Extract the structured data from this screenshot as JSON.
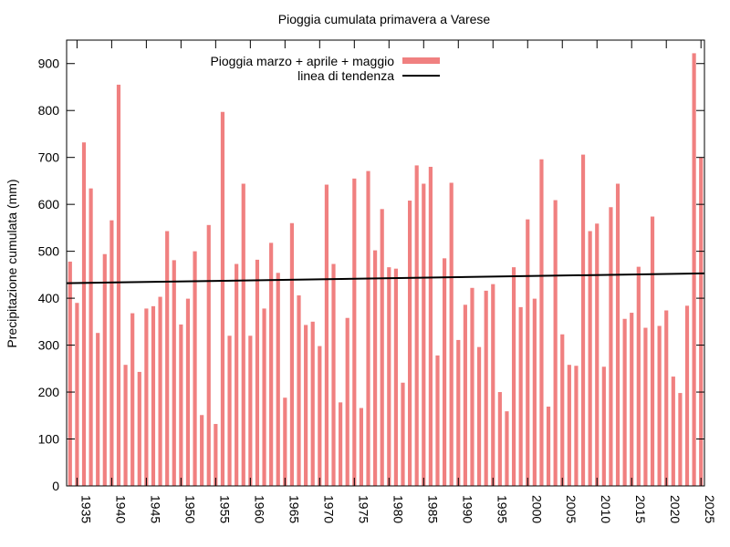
{
  "chart_data": {
    "type": "bar",
    "title": "Pioggia cumulata primavera a Varese",
    "xlabel": "",
    "ylabel": "Precipitazione cumulata (mm)",
    "xlim": [
      1934,
      2025
    ],
    "ylim": [
      0,
      950
    ],
    "grid": false,
    "legend_position": "top",
    "yticks": [
      0,
      100,
      200,
      300,
      400,
      500,
      600,
      700,
      800,
      900
    ],
    "xticks": [
      1935,
      1940,
      1945,
      1950,
      1955,
      1960,
      1965,
      1970,
      1975,
      1980,
      1985,
      1990,
      1995,
      2000,
      2005,
      2010,
      2015,
      2020,
      2025
    ],
    "x": [
      1934,
      1935,
      1936,
      1937,
      1938,
      1939,
      1940,
      1941,
      1942,
      1943,
      1944,
      1945,
      1946,
      1947,
      1948,
      1949,
      1950,
      1951,
      1952,
      1953,
      1954,
      1955,
      1956,
      1957,
      1958,
      1959,
      1960,
      1961,
      1962,
      1963,
      1964,
      1965,
      1966,
      1967,
      1968,
      1969,
      1970,
      1971,
      1972,
      1973,
      1974,
      1975,
      1976,
      1977,
      1978,
      1979,
      1980,
      1981,
      1982,
      1983,
      1984,
      1985,
      1986,
      1987,
      1988,
      1989,
      1990,
      1991,
      1992,
      1993,
      1994,
      1995,
      1996,
      1997,
      1998,
      1999,
      2000,
      2001,
      2002,
      2003,
      2004,
      2005,
      2006,
      2007,
      2008,
      2009,
      2010,
      2011,
      2012,
      2013,
      2014,
      2015,
      2016,
      2017,
      2018,
      2019,
      2020,
      2021,
      2022,
      2023,
      2024,
      2025
    ],
    "series": [
      {
        "name": "Pioggia marzo + aprile + maggio",
        "color": "#f08080",
        "values": [
          478,
          390,
          732,
          634,
          326,
          494,
          566,
          855,
          258,
          368,
          243,
          378,
          383,
          403,
          543,
          481,
          344,
          399,
          500,
          151,
          556,
          132,
          797,
          320,
          473,
          644,
          320,
          482,
          378,
          518,
          454,
          188,
          560,
          406,
          343,
          350,
          298,
          642,
          473,
          178,
          358,
          655,
          166,
          671,
          502,
          590,
          466,
          463,
          220,
          608,
          683,
          644,
          680,
          278,
          485,
          646,
          311,
          386,
          422,
          296,
          416,
          430,
          200,
          159,
          466,
          381,
          568,
          399,
          696,
          169,
          609,
          323,
          258,
          256,
          706,
          543,
          559,
          254,
          594,
          644,
          356,
          369,
          467,
          337,
          574,
          341,
          374,
          233,
          198,
          384,
          922,
          700
        ]
      }
    ],
    "trend": {
      "name": "linea di tendenza",
      "color": "#000000",
      "start": [
        1934,
        432
      ],
      "end": [
        2025,
        453
      ]
    }
  }
}
